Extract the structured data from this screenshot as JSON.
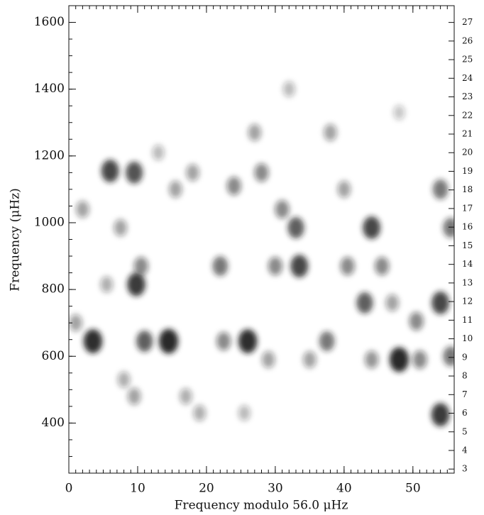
{
  "chart_data": {
    "type": "echelle",
    "x_label": "Frequency modulo 56.0 μHz",
    "y_label": "Frequency (μHz)",
    "xlim": [
      0,
      56
    ],
    "xticks": [
      0,
      10,
      20,
      30,
      40,
      50
    ],
    "ylim": [
      250,
      1650
    ],
    "yticks": [
      400,
      600,
      800,
      1000,
      1200,
      1400,
      1600
    ],
    "y2lim": [
      2.78,
      27.9
    ],
    "y2ticks": [
      3,
      4,
      5,
      6,
      7,
      8,
      9,
      10,
      11,
      12,
      13,
      14,
      15,
      16,
      17,
      18,
      19,
      20,
      21,
      22,
      23,
      24,
      25,
      26,
      27
    ],
    "color": "#1a1a1a",
    "x": [
      3.5,
      6,
      9.5,
      9.8,
      10.5,
      11,
      14.5,
      26,
      22,
      22.5,
      33.5,
      33,
      44,
      43,
      48,
      54,
      55.5,
      54,
      54,
      37.5,
      45.5,
      40.5,
      31,
      30,
      28,
      24,
      18,
      15.5,
      7.5,
      1,
      2,
      19,
      29,
      35,
      50.5,
      51,
      38,
      27,
      13,
      9.5,
      17,
      40,
      44,
      47,
      55.5,
      5.5,
      25.5,
      32,
      48,
      8
    ],
    "values": [
      645,
      1155,
      1150,
      815,
      870,
      645,
      645,
      645,
      870,
      645,
      870,
      985,
      985,
      760,
      590,
      760,
      985,
      425,
      1100,
      645,
      870,
      870,
      1040,
      870,
      1150,
      1110,
      1150,
      1100,
      985,
      700,
      1040,
      430,
      590,
      590,
      705,
      590,
      1270,
      1270,
      1210,
      480,
      480,
      1100,
      590,
      760,
      600,
      815,
      430,
      1400,
      1330,
      530
    ],
    "intensity": [
      0.9,
      0.8,
      0.75,
      0.85,
      0.5,
      0.7,
      0.95,
      0.9,
      0.6,
      0.5,
      0.8,
      0.7,
      0.8,
      0.7,
      0.95,
      0.8,
      0.6,
      0.85,
      0.6,
      0.6,
      0.5,
      0.5,
      0.5,
      0.5,
      0.5,
      0.5,
      0.4,
      0.4,
      0.4,
      0.4,
      0.4,
      0.35,
      0.4,
      0.4,
      0.5,
      0.5,
      0.4,
      0.4,
      0.3,
      0.4,
      0.35,
      0.4,
      0.45,
      0.4,
      0.6,
      0.35,
      0.3,
      0.3,
      0.25,
      0.35
    ]
  }
}
